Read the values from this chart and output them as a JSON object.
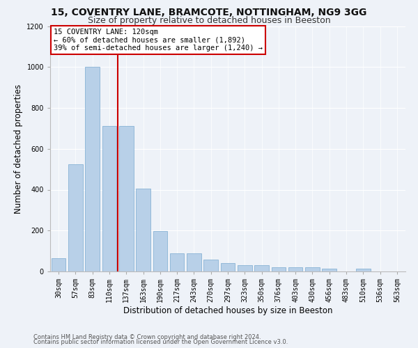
{
  "title1": "15, COVENTRY LANE, BRAMCOTE, NOTTINGHAM, NG9 3GG",
  "title2": "Size of property relative to detached houses in Beeston",
  "xlabel": "Distribution of detached houses by size in Beeston",
  "ylabel": "Number of detached properties",
  "categories": [
    "30sqm",
    "57sqm",
    "83sqm",
    "110sqm",
    "137sqm",
    "163sqm",
    "190sqm",
    "217sqm",
    "243sqm",
    "270sqm",
    "297sqm",
    "323sqm",
    "350sqm",
    "376sqm",
    "403sqm",
    "430sqm",
    "456sqm",
    "483sqm",
    "510sqm",
    "536sqm",
    "563sqm"
  ],
  "values": [
    65,
    525,
    1000,
    710,
    710,
    405,
    198,
    90,
    90,
    57,
    40,
    32,
    32,
    20,
    20,
    20,
    12,
    0,
    12,
    0,
    0
  ],
  "bar_color": "#b8d0e8",
  "bar_edge_color": "#7aaad0",
  "vline_color": "#cc0000",
  "vline_x_index": 3,
  "annotation_line1": "15 COVENTRY LANE: 120sqm",
  "annotation_line2": "← 60% of detached houses are smaller (1,892)",
  "annotation_line3": "39% of semi-detached houses are larger (1,240) →",
  "annotation_box_color": "#ffffff",
  "annotation_box_edge_color": "#cc0000",
  "ylim": [
    0,
    1200
  ],
  "yticks": [
    0,
    200,
    400,
    600,
    800,
    1000,
    1200
  ],
  "footer1": "Contains HM Land Registry data © Crown copyright and database right 2024.",
  "footer2": "Contains public sector information licensed under the Open Government Licence v3.0.",
  "bg_color": "#eef2f8",
  "plot_bg_color": "#eef2f8",
  "title1_fontsize": 10,
  "title2_fontsize": 9,
  "tick_fontsize": 7,
  "ylabel_fontsize": 8.5,
  "xlabel_fontsize": 8.5,
  "footer_fontsize": 6,
  "annotation_fontsize": 7.5
}
